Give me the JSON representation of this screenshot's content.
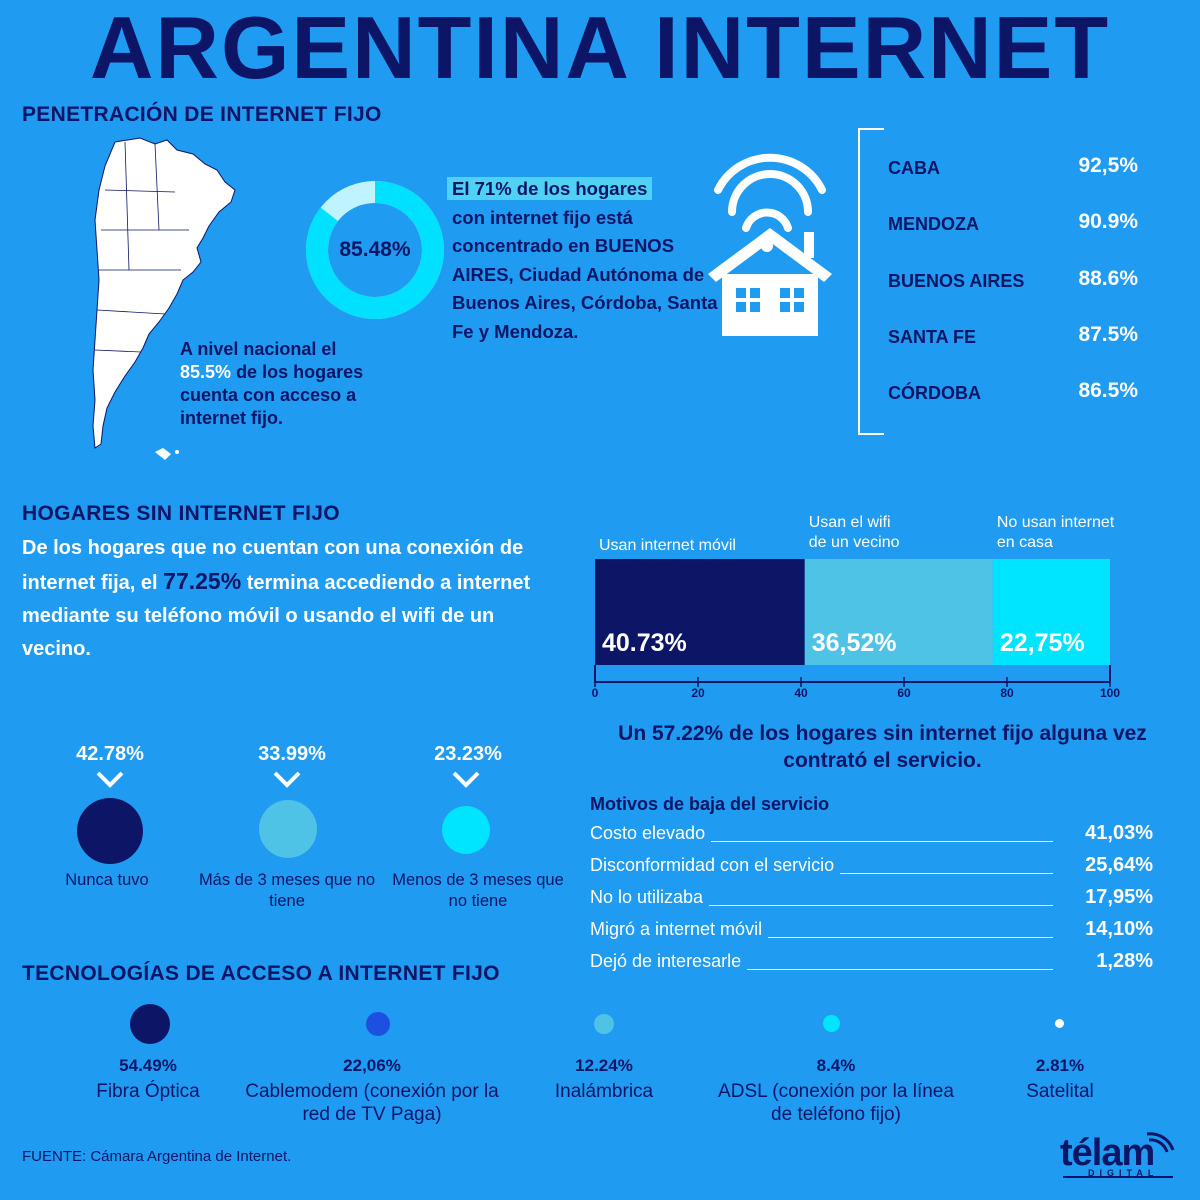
{
  "title": "ARGENTINA INTERNET",
  "section1": {
    "title": "PENETRACIÓN DE INTERNET FIJO",
    "donut_label": "85.48%",
    "donut_value": 85.48,
    "national_pre": "A nivel nacional el",
    "national_highlight": "85.5%",
    "national_rest": "de los hogares cuenta con acceso a internet fijo.",
    "concentration_highlight": "El 71% de los hogares",
    "concentration_rest": "con internet fijo está concentrado en BUENOS AIRES, Ciudad Autónoma de Buenos Aires, Córdoba, Santa Fe y Mendoza.",
    "provinces": [
      {
        "name": "CABA",
        "value": "92,5%"
      },
      {
        "name": "MENDOZA",
        "value": "90.9%"
      },
      {
        "name": "BUENOS AIRES",
        "value": "88.6%"
      },
      {
        "name": "SANTA FE",
        "value": "87.5%"
      },
      {
        "name": "CÓRDOBA",
        "value": "86.5%"
      }
    ]
  },
  "section2": {
    "title": "HOGARES SIN INTERNET FIJO",
    "text_pre": "De los hogares que no cuentan con una conexión de internet fija, el",
    "text_highlight": "77.25%",
    "text_post": "termina accediendo a internet mediante su teléfono móvil o usando el wifi de un vecino.",
    "contrato_text": "Un 57.22% de los hogares sin internet fijo alguna vez contrató el servicio.",
    "durations": [
      {
        "value": "42.78%",
        "label": "Nunca tuvo",
        "color": "#0d1566"
      },
      {
        "value": "33.99%",
        "label": "Más de 3 meses que no tiene",
        "color": "#4fc3e6"
      },
      {
        "value": "23.23%",
        "label": "Menos de 3 meses que no tiene",
        "color": "#00e5ff"
      }
    ],
    "motivos_title": "Motivos de baja del servicio",
    "motivos": [
      {
        "label": "Costo elevado",
        "value": "41,03%"
      },
      {
        "label": "Disconformidad con el servicio",
        "value": "25,64%"
      },
      {
        "label": "No lo utilizaba",
        "value": "17,95%"
      },
      {
        "label": "Migró a internet móvil",
        "value": "14,10%"
      },
      {
        "label": "Dejó de interesarle",
        "value": "1,28%"
      }
    ]
  },
  "section3": {
    "title": "TECNOLOGÍAS DE ACCESO A INTERNET FIJO",
    "techs": [
      {
        "value": "54.49%",
        "label": "Fibra Óptica",
        "color": "#0d1566"
      },
      {
        "value": "22,06%",
        "label": "Cablemodem (conexión por la red de TV Paga)",
        "color": "#1d4fe0"
      },
      {
        "value": "12.24%",
        "label": "Inalámbrica",
        "color": "#4fc3e6"
      },
      {
        "value": "8.4%",
        "label": "ADSL (conexión por la línea de teléfono fijo)",
        "color": "#00e5ff"
      },
      {
        "value": "2.81%",
        "label": "Satelital",
        "color": "#ffffff"
      }
    ]
  },
  "footer": {
    "source": "FUENTE: Cámara Argentina de Internet.",
    "logo": "télam",
    "logo_sub": "DIGITAL"
  },
  "chart_data": [
    {
      "type": "pie",
      "values": [
        85.48
      ],
      "labels": [
        "85.48%"
      ]
    },
    {
      "type": "bar",
      "orientation": "horizontal-stacked",
      "series": [
        {
          "name": "Usan internet móvil",
          "values": [
            40.73
          ],
          "label": "40.73%",
          "color": "#0d1566"
        },
        {
          "name": "Usan el wifi de un vecino",
          "values": [
            36.52
          ],
          "label": "36,52%",
          "color": "#4fc3e6"
        },
        {
          "name": "No usan internet en casa",
          "values": [
            22.75
          ],
          "label": "22,75%",
          "color": "#00e5ff"
        }
      ],
      "xlim": [
        0,
        100
      ],
      "ticks": [
        0,
        20,
        40,
        60,
        80,
        100
      ]
    }
  ]
}
